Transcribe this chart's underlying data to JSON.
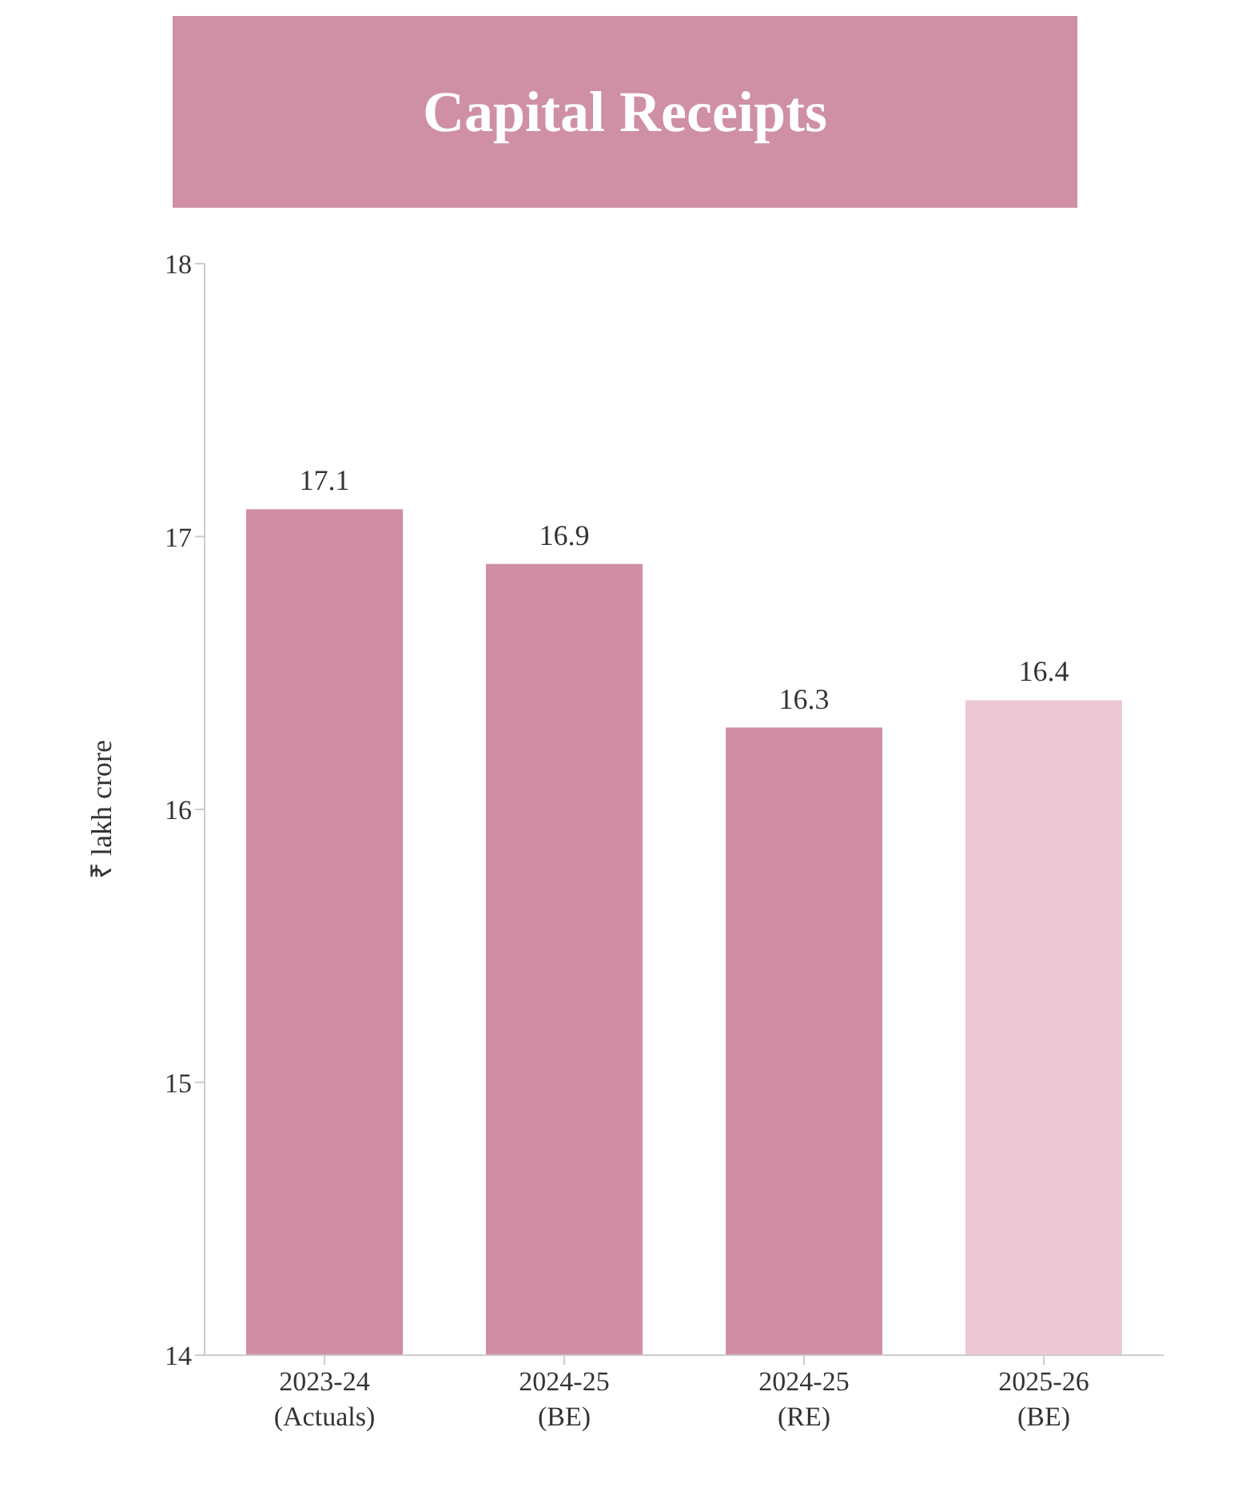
{
  "chart_data": {
    "type": "bar",
    "title": "Capital Receipts",
    "ylabel": "₹ lakh crore",
    "categories": [
      "2023-24\n(Actuals)",
      "2024-25\n(BE)",
      "2024-25\n(RE)",
      "2025-26\n(BE)"
    ],
    "values": [
      17.1,
      16.9,
      16.3,
      16.4
    ],
    "colors": [
      "#d08ea4",
      "#d08ea4",
      "#d08ea4",
      "#ecc8d4"
    ],
    "ylim": [
      14,
      18
    ],
    "yticks": [
      14,
      15,
      16,
      17,
      18
    ],
    "grid": false,
    "data_labels": true,
    "legend": false
  }
}
